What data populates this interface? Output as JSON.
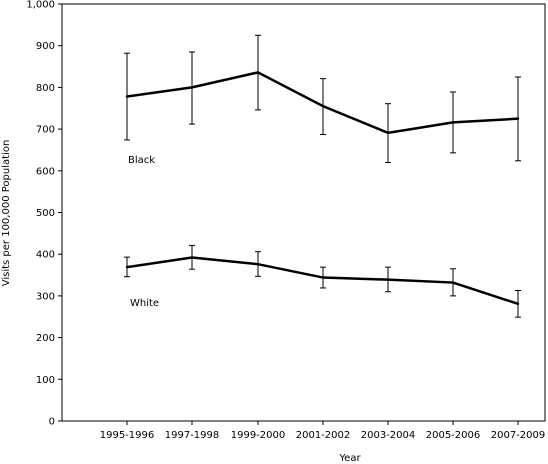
{
  "chart_data": {
    "type": "line",
    "title": "",
    "xlabel": "Year",
    "ylabel": "Visits per 100,000 Population",
    "ylim": [
      0,
      1000
    ],
    "yticks": [
      "0",
      "100",
      "200",
      "300",
      "400",
      "500",
      "600",
      "700",
      "800",
      "900",
      "1,000"
    ],
    "categories": [
      "1995-1996",
      "1997-1998",
      "1999-2000",
      "2001-2002",
      "2003-2004",
      "2005-2006",
      "2007-2009"
    ],
    "grid": false,
    "series": [
      {
        "name": "Black",
        "values": [
          778,
          800,
          836,
          755,
          691,
          716,
          725
        ],
        "error_low": [
          674,
          712,
          746,
          687,
          620,
          643,
          624
        ],
        "error_high": [
          882,
          885,
          925,
          821,
          761,
          789,
          825
        ]
      },
      {
        "name": "White",
        "values": [
          369,
          392,
          376,
          344,
          339,
          332,
          281
        ],
        "error_low": [
          346,
          364,
          347,
          319,
          310,
          300,
          249
        ],
        "error_high": [
          393,
          421,
          406,
          369,
          369,
          365,
          313
        ]
      }
    ]
  }
}
